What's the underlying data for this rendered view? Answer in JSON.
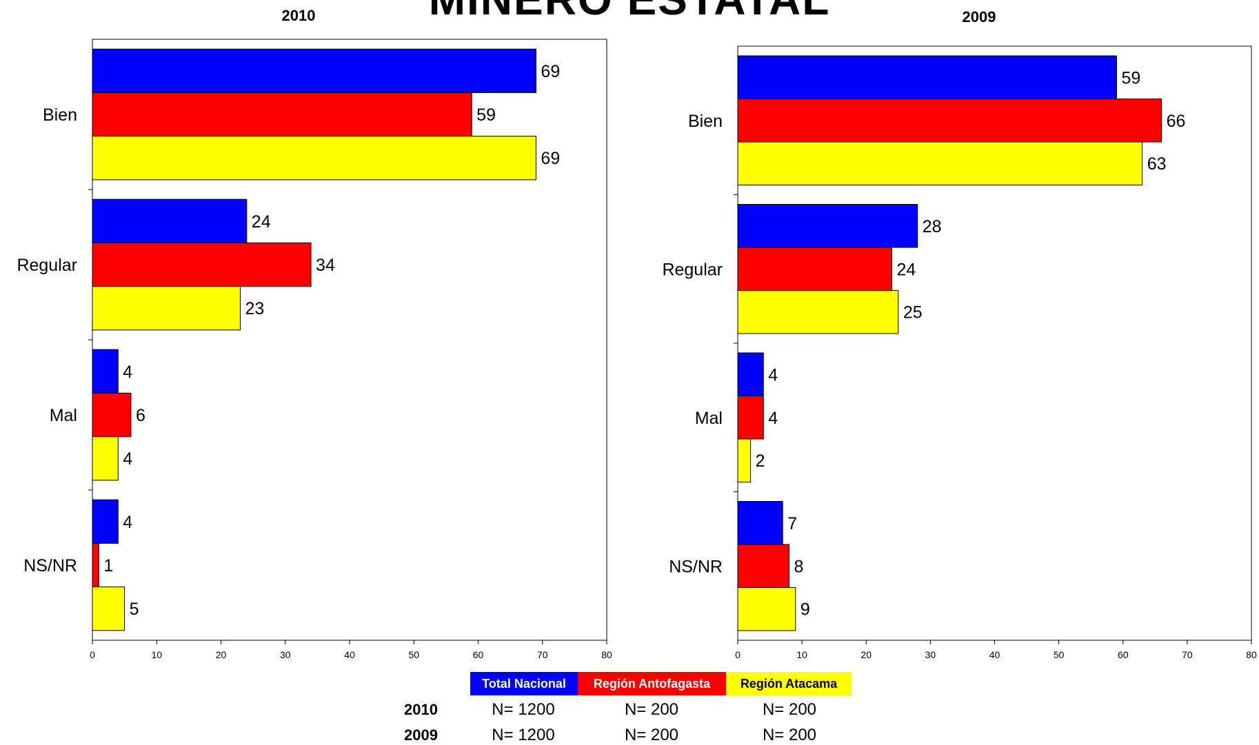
{
  "page_title": "MINERO ESTATAL",
  "colors": {
    "total_nacional": "#0000FF",
    "region_antofagasta": "#FF0000",
    "region_atacama": "#FFFF00"
  },
  "chart_data": [
    {
      "type": "bar",
      "orientation": "horizontal",
      "title": "2010",
      "categories": [
        "Bien",
        "Regular",
        "Mal",
        "NS/NR"
      ],
      "series": [
        {
          "name": "Total Nacional",
          "values": [
            69,
            24,
            4,
            4
          ]
        },
        {
          "name": "Región Antofagasta",
          "values": [
            59,
            34,
            6,
            1
          ]
        },
        {
          "name": "Región Atacama",
          "values": [
            69,
            23,
            4,
            5
          ]
        }
      ],
      "x_ticks": [
        "0",
        "10",
        "20",
        "30",
        "40",
        "50",
        "60",
        "70",
        "80"
      ],
      "xlim": [
        0,
        80
      ],
      "grid": false,
      "legend": "bottom"
    },
    {
      "type": "bar",
      "orientation": "horizontal",
      "title": "2009",
      "categories": [
        "Bien",
        "Regular",
        "Mal",
        "NS/NR"
      ],
      "series": [
        {
          "name": "Total Nacional",
          "values": [
            59,
            28,
            4,
            7
          ]
        },
        {
          "name": "Región Antofagasta",
          "values": [
            66,
            24,
            4,
            8
          ]
        },
        {
          "name": "Región Atacama",
          "values": [
            63,
            25,
            2,
            9
          ]
        }
      ],
      "x_ticks": [
        "0",
        "10",
        "20",
        "30",
        "40",
        "50",
        "60",
        "70",
        "80"
      ],
      "xlim": [
        0,
        80
      ],
      "grid": false,
      "legend": "bottom"
    }
  ],
  "legend": {
    "labels": [
      "Total Nacional",
      "Región Antofagasta",
      "Región Atacama"
    ]
  },
  "sample_sizes": {
    "rows": [
      {
        "year": "2010",
        "values": [
          "N= 1200",
          "N= 200",
          "N= 200"
        ]
      },
      {
        "year": "2009",
        "values": [
          "N= 1200",
          "N= 200",
          "N= 200"
        ]
      }
    ]
  }
}
